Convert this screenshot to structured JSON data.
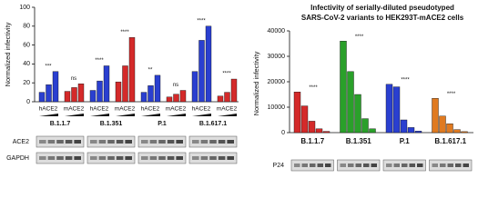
{
  "chart_data": [
    {
      "type": "grouped-bar",
      "ylabel": "Normalized infectivity",
      "categories": [
        "B.1.1.7",
        "B.1.351",
        "P.1",
        "B.1.617.1"
      ],
      "series": [
        {
          "name": "hACE2",
          "color": "#2a3fd0",
          "values": [
            [
              10,
              18,
              32
            ],
            [
              12,
              22,
              38
            ],
            [
              10,
              17,
              28
            ],
            [
              32,
              65,
              80
            ]
          ],
          "significance": [
            "***",
            "****",
            "**",
            "****"
          ]
        },
        {
          "name": "mACE2",
          "color": "#d42a2a",
          "values": [
            [
              11,
              15,
              19
            ],
            [
              21,
              38,
              68
            ],
            [
              5,
              8,
              12
            ],
            [
              6,
              10,
              24
            ]
          ],
          "significance": [
            "ns",
            "****",
            "ns",
            "****"
          ]
        }
      ],
      "ylim": [
        0,
        100
      ],
      "yticks": [
        0,
        20,
        40,
        60,
        80,
        100
      ],
      "blots": [
        "ACE2",
        "GAPDH"
      ]
    },
    {
      "type": "dilution-bar",
      "title": "Infectivity of serially-diluted pseudotyped",
      "subtitle": "SARS-CoV-2 variants to HEK293T-mACE2 cells",
      "ylabel": "Normalized infectivity",
      "categories": [
        "B.1.1.7",
        "B.1.351",
        "P.1",
        "B.1.617.1"
      ],
      "colors": [
        "#d42a2a",
        "#2aa02a",
        "#2a3fd0",
        "#e07a20"
      ],
      "values": [
        [
          16000,
          10500,
          4500,
          1500,
          500
        ],
        [
          36000,
          24000,
          15000,
          5500,
          1500
        ],
        [
          19000,
          18000,
          5000,
          2000,
          600
        ],
        [
          13500,
          6500,
          3500,
          1200,
          400
        ]
      ],
      "significance": [
        "****",
        "****",
        "****",
        "****"
      ],
      "ylim": [
        0,
        40000
      ],
      "yticks": [
        0,
        10000,
        20000,
        30000,
        40000
      ],
      "blots": [
        "P24"
      ]
    }
  ]
}
